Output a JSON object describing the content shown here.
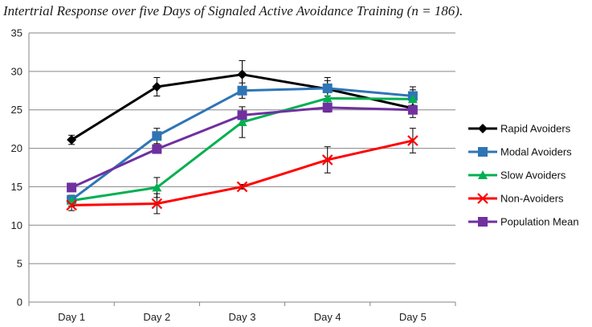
{
  "chart_data": {
    "type": "line",
    "title": "Intertrial Response over five Days of Signaled Active Avoidance Training (n = 186).",
    "xlabel": "",
    "ylabel": "",
    "categories": [
      "Day 1",
      "Day 2",
      "Day 3",
      "Day 4",
      "Day 5"
    ],
    "ylim": [
      0,
      35
    ],
    "yticks": [
      0,
      5,
      10,
      15,
      20,
      25,
      30,
      35
    ],
    "grid": true,
    "legend_position": "right",
    "series": [
      {
        "name": "Rapid Avoiders",
        "color": "#000000",
        "marker": "diamond",
        "values": [
          21.1,
          28.0,
          29.6,
          27.7,
          25.2
        ],
        "errors": [
          0.6,
          1.2,
          1.8,
          1.5,
          1.2
        ]
      },
      {
        "name": "Modal Avoiders",
        "color": "#2E75B6",
        "marker": "square",
        "values": [
          13.3,
          21.6,
          27.5,
          27.8,
          26.8
        ],
        "errors": [
          0.5,
          1.0,
          1.0,
          1.0,
          1.2
        ]
      },
      {
        "name": "Slow Avoiders",
        "color": "#00B050",
        "marker": "triangle",
        "values": [
          13.2,
          14.9,
          23.4,
          26.5,
          26.4
        ],
        "errors": [
          0.7,
          1.3,
          2.0,
          1.8,
          1.2
        ]
      },
      {
        "name": "Non-Avoiders",
        "color": "#FF0000",
        "marker": "x",
        "values": [
          12.6,
          12.8,
          15.0,
          18.5,
          21.0
        ],
        "errors": [
          0.7,
          1.3,
          0.3,
          1.7,
          1.6
        ]
      },
      {
        "name": "Population Mean",
        "color": "#7030A0",
        "marker": "square",
        "values": [
          14.9,
          19.9,
          24.3,
          25.3,
          25.0
        ],
        "errors": [
          0.3,
          0.4,
          0.5,
          0.5,
          0.4
        ]
      }
    ]
  }
}
